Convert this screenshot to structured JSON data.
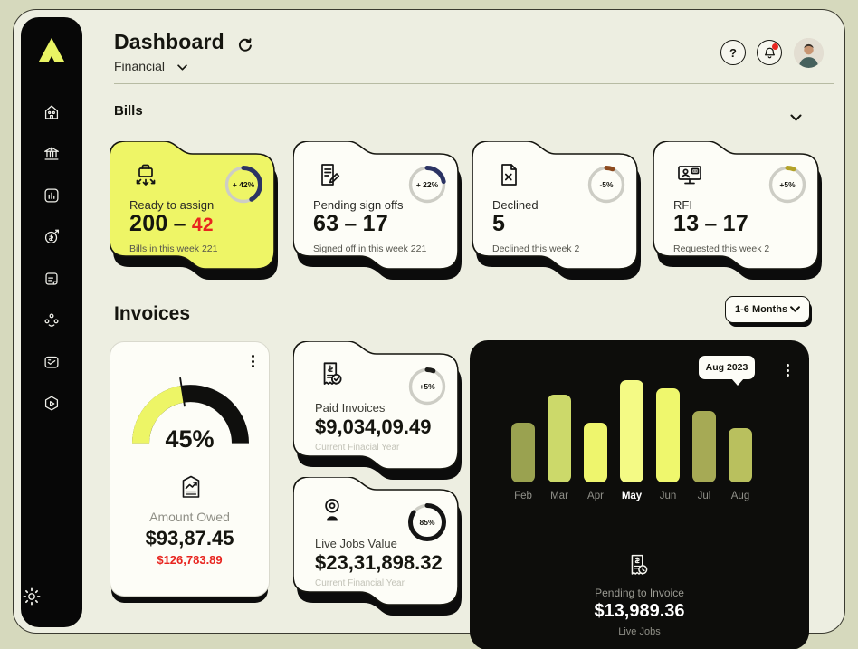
{
  "header": {
    "title": "Dashboard",
    "section": "Financial",
    "help_label": "?",
    "notification_badge": true
  },
  "sidebar": {
    "items": [
      {
        "name": "home"
      },
      {
        "name": "bank"
      },
      {
        "name": "reports"
      },
      {
        "name": "transactions"
      },
      {
        "name": "documents"
      },
      {
        "name": "contacts"
      },
      {
        "name": "inbox"
      },
      {
        "name": "support"
      }
    ],
    "settings": {
      "name": "settings"
    }
  },
  "bills": {
    "label": "Bills",
    "cards": [
      {
        "title": "Ready to assign",
        "value": "200",
        "dash": "–",
        "value2": "42",
        "sub": "Bills in this week 221",
        "badge": "+ 42%",
        "pct": 42,
        "arc_color": "#2b3363"
      },
      {
        "title": "Pending sign offs",
        "value": "63",
        "dash": "–",
        "value2": "17",
        "sub": "Signed off in this week 221",
        "badge": "+ 22%",
        "pct": 22,
        "arc_color": "#2b3363"
      },
      {
        "title": "Declined",
        "value": "5",
        "sub": "Declined this week 2",
        "badge": "-5%",
        "pct": 6,
        "arc_color": "#8c4a1e"
      },
      {
        "title": "RFI",
        "value": "13",
        "dash": "–",
        "value2": "17",
        "sub": "Requested this week 2",
        "badge": "+5%",
        "pct": 6,
        "arc_color": "#b3a229"
      }
    ]
  },
  "invoices": {
    "label": "Invoices",
    "filter": {
      "value": "1-6 Months"
    },
    "gauge_card": {
      "pct": 45,
      "pct_label": "45%",
      "title": "Amount Owed",
      "value": "$93,87.45",
      "alt_value": "$126,783.89"
    },
    "paid_card": {
      "title": "Paid Invoices",
      "value": "$9,034,09.49",
      "sub": "Current Finacial Year",
      "badge": "+5%",
      "pct": 6,
      "arc_color": "#1d1d1a"
    },
    "live_card": {
      "title": "Live Jobs Value",
      "value": "$23,31,898.32",
      "sub": "Current Financial Year",
      "badge": "85%",
      "pct": 85,
      "arc_color": "#141414"
    },
    "chart_card": {
      "tooltip": "Aug 2023",
      "pending_label": "Pending to Invoice",
      "pending_value": "$13,989.36",
      "pending_sub": "Live Jobs"
    }
  },
  "chart_data": {
    "type": "bar",
    "categories": [
      "Feb",
      "Mar",
      "Apr",
      "May",
      "Jun",
      "Jul",
      "Aug"
    ],
    "values": [
      58,
      86,
      58,
      100,
      92,
      70,
      53
    ],
    "ylim": [
      0,
      100
    ],
    "highlight_category": "May",
    "tooltip": "Aug 2023",
    "bar_colors": [
      "#9aa250",
      "#ccd96a",
      "#eef56d",
      "#f4fa85",
      "#eff76d",
      "#a6aa55",
      "#b9c05e"
    ],
    "title": "",
    "xlabel": "",
    "ylabel": "",
    "grid": false,
    "legend": false,
    "background": "#0d0d0b"
  },
  "colors": {
    "accent_yellow": "#eef566",
    "alert_red": "#e8251f",
    "ring_navy": "#2b3363",
    "ring_rust": "#8c4a1e",
    "ring_olive": "#b3a229",
    "card_dark": "#0d0d0b",
    "page_bg": "#d6d9bd",
    "frame_bg": "#edeee1"
  }
}
